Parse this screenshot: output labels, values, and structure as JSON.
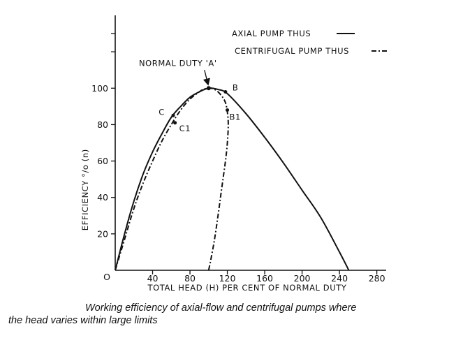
{
  "chart_data": {
    "type": "line",
    "xlabel": "TOTAL HEAD (H) PER CENT OF NORMAL DUTY",
    "ylabel": "EFFICIENCY °/o (n)",
    "xlim": [
      0,
      290
    ],
    "ylim": [
      0,
      140
    ],
    "xticks": [
      0,
      40,
      80,
      120,
      160,
      200,
      240,
      280
    ],
    "xtick_labels": [
      "0",
      "40",
      "80",
      "120",
      "160",
      "200",
      "240",
      "280"
    ],
    "yticks": [
      20,
      40,
      60,
      80,
      100
    ],
    "ytick_labels": [
      "20",
      "40",
      "60",
      "80",
      "100"
    ],
    "origin_label": "O",
    "grid": false,
    "legend_position": "top-right",
    "series": [
      {
        "name": "AXIAL PUMP THUS",
        "line_style": "solid",
        "x": [
          0,
          10,
          20,
          30,
          40,
          50,
          60,
          70,
          80,
          90,
          100,
          110,
          120,
          140,
          160,
          180,
          200,
          220,
          240,
          250
        ],
        "y": [
          0,
          20,
          38,
          53,
          65,
          75,
          84,
          90,
          95,
          98,
          100,
          99.3,
          97,
          86,
          73,
          59,
          44,
          29,
          10,
          0
        ]
      },
      {
        "name": "CENTRIFUGAL PUMP THUS",
        "line_style": "dash-dot",
        "x": [
          0,
          10,
          20,
          30,
          40,
          50,
          60,
          70,
          80,
          90,
          95,
          100,
          105,
          110,
          115,
          118,
          120,
          121,
          120,
          118,
          114,
          110,
          106,
          102,
          100
        ],
        "y": [
          0,
          17,
          34,
          48,
          60,
          71,
          80,
          88,
          94,
          98,
          99.5,
          100,
          99.7,
          98,
          95,
          92,
          87,
          80,
          70,
          60,
          45,
          30,
          16,
          5,
          0
        ]
      }
    ],
    "points": [
      {
        "label": "C",
        "x": 62,
        "y": 85
      },
      {
        "label": "C1",
        "x": 64,
        "y": 81
      },
      {
        "label": "B",
        "x": 118,
        "y": 98
      },
      {
        "label": "B1",
        "x": 120,
        "y": 88
      }
    ],
    "annotations": [
      {
        "text": "NORMAL DUTY 'A'",
        "x": 100,
        "y": 100
      }
    ],
    "caption": {
      "line1": "Working efficiency of axial-flow and centrifugal pumps where",
      "line2": "the head varies within large limits"
    }
  }
}
